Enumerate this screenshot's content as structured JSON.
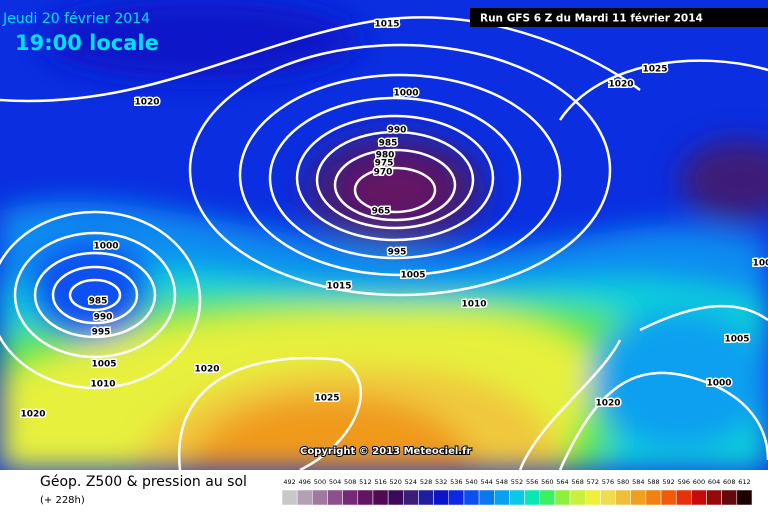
{
  "header": {
    "date": "Jeudi 20 février 2014",
    "time": "19:00 locale",
    "run": "Run GFS 6 Z du Mardi 11 février 2014"
  },
  "copyright": "Copyright © 2013 Meteociel.fr",
  "isobar_labels": [
    "1015",
    "1020",
    "1000",
    "990",
    "985",
    "980",
    "975",
    "970",
    "965",
    "995",
    "1005",
    "1015",
    "1010",
    "1000",
    "985",
    "990",
    "995",
    "1005",
    "1010",
    "1020",
    "1020",
    "1025",
    "1020",
    "1025",
    "1020",
    "1005",
    "1000",
    "100"
  ],
  "footer": {
    "title": "Géop. Z500 & pression au sol",
    "subtitle": "(+ 228h)"
  },
  "colorbar": {
    "ticks": [
      492,
      496,
      500,
      504,
      508,
      512,
      516,
      520,
      524,
      528,
      532,
      536,
      540,
      544,
      548,
      552,
      556,
      560,
      564,
      568,
      572,
      576,
      580,
      584,
      588,
      592,
      596,
      600,
      604,
      608,
      612
    ],
    "colors": [
      "#c8c8c8",
      "#b4a0b4",
      "#a078a0",
      "#8c508c",
      "#782878",
      "#641464",
      "#500a50",
      "#3c0a5a",
      "#3c1e78",
      "#1e1ea0",
      "#0a14c8",
      "#0a28e6",
      "#0a50f0",
      "#0a78f0",
      "#0aa0f0",
      "#0ac8e6",
      "#0ae6b4",
      "#3cf064",
      "#8cf03c",
      "#c8f03c",
      "#f0f03c",
      "#f0dc50",
      "#f0be3c",
      "#f0a01e",
      "#f08214",
      "#f05a0a",
      "#e6320a",
      "#c80a0a",
      "#960a0a",
      "#640a0a",
      "#1e0000"
    ]
  }
}
